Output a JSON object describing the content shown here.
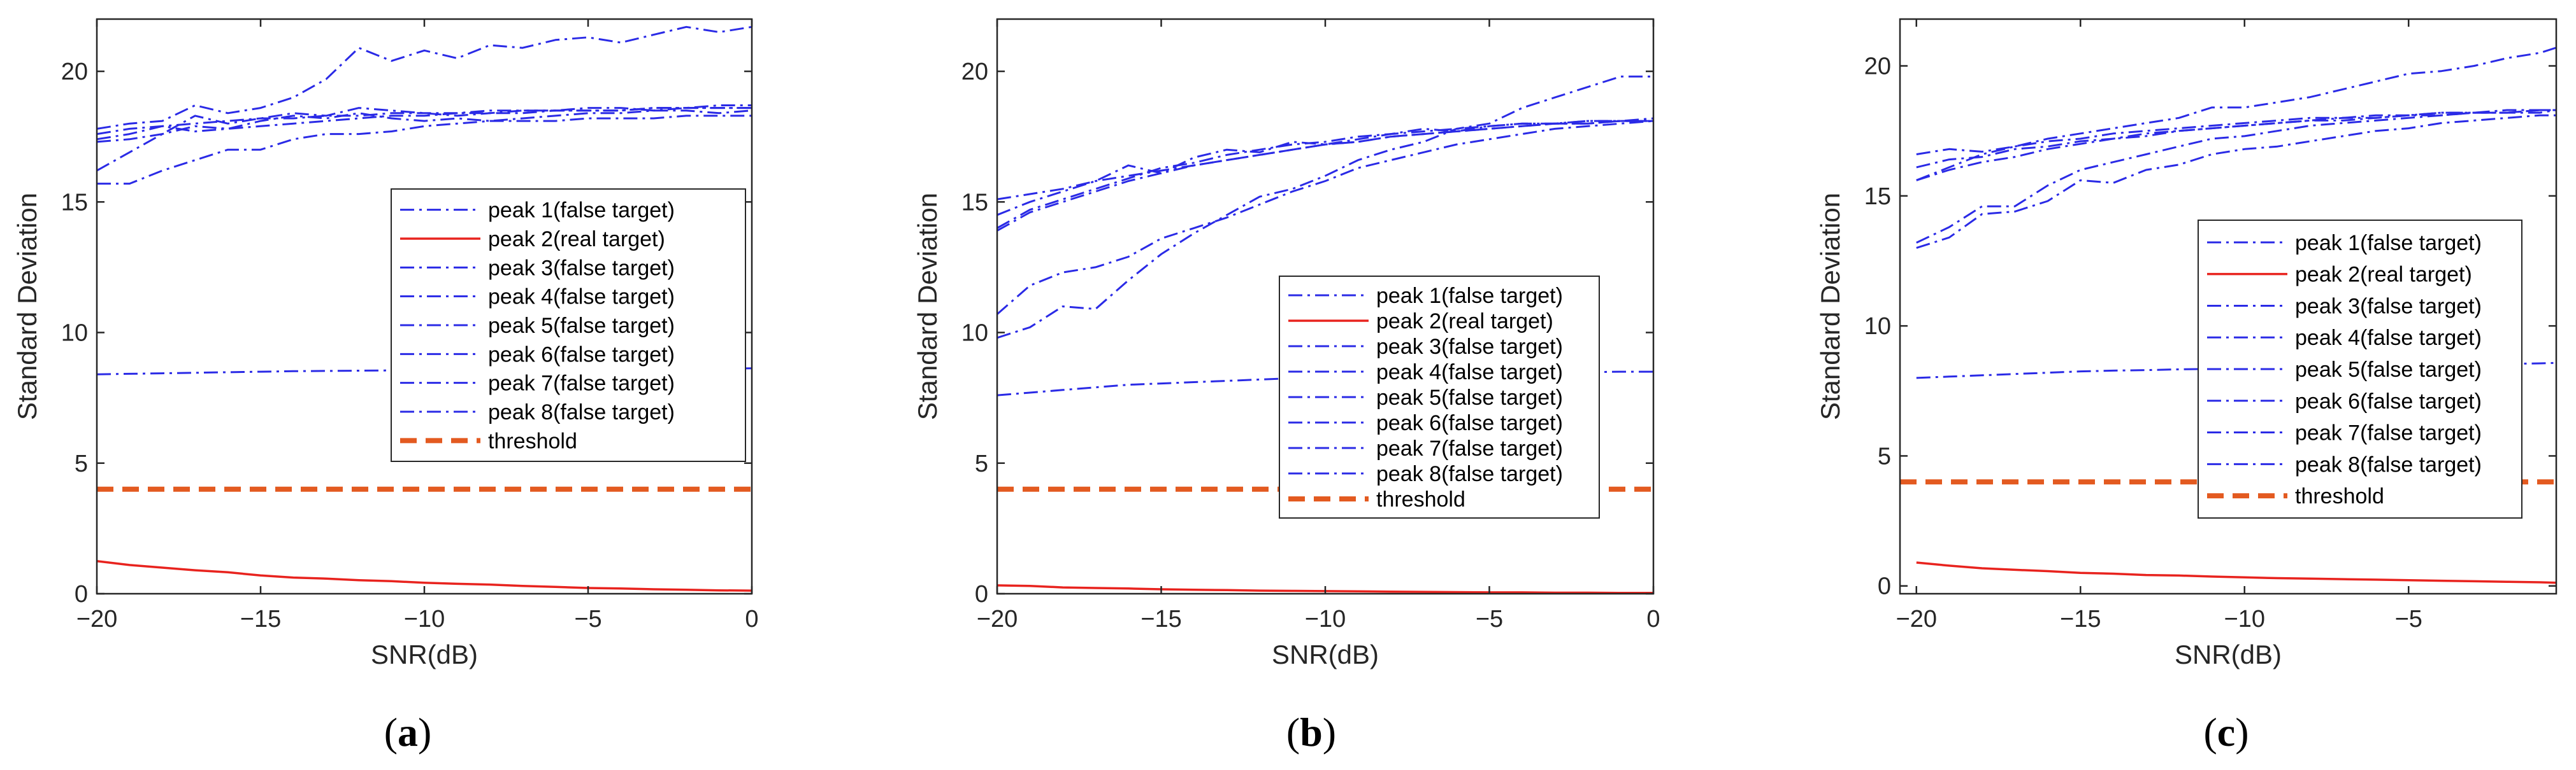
{
  "colors": {
    "false_target": "#2a2ae6",
    "real_target": "#e8231e",
    "threshold": "#e35a20",
    "axis": "#262626"
  },
  "chart_data": [
    {
      "type": "line",
      "panel_label": "a",
      "xlabel": "SNR(dB)",
      "ylabel": "Standard Deviation",
      "xlim": [
        -20,
        0
      ],
      "ylim": [
        0,
        22
      ],
      "xticks": [
        -20,
        -15,
        -10,
        -5,
        0
      ],
      "yticks": [
        0,
        5,
        10,
        15,
        20
      ],
      "x": [
        -20,
        -19,
        -18,
        -17,
        -16,
        -15,
        -14,
        -13,
        -12,
        -11,
        -10,
        -9,
        -8,
        -7,
        -6,
        -5,
        -4,
        -3,
        -2,
        -1,
        0
      ],
      "series": [
        {
          "name": "peak 1(false target)",
          "style": "dashdot",
          "values": [
            17.8,
            18.0,
            18.1,
            18.7,
            18.4,
            18.6,
            19.0,
            19.7,
            20.9,
            20.4,
            20.8,
            20.5,
            21.0,
            20.9,
            21.2,
            21.3,
            21.1,
            21.4,
            21.7,
            21.5,
            21.7
          ]
        },
        {
          "name": "peak 2(real target)",
          "style": "solid",
          "values": [
            1.25,
            1.1,
            1.0,
            0.9,
            0.82,
            0.7,
            0.62,
            0.58,
            0.52,
            0.48,
            0.42,
            0.38,
            0.35,
            0.3,
            0.26,
            0.22,
            0.2,
            0.17,
            0.15,
            0.13,
            0.12
          ]
        },
        {
          "name": "peak 3(false target)",
          "style": "dashdot",
          "values": [
            16.2,
            16.9,
            17.6,
            18.3,
            18.0,
            18.2,
            18.4,
            18.3,
            18.6,
            18.5,
            18.4,
            18.3,
            18.4,
            18.5,
            18.5,
            18.6,
            18.6,
            18.5,
            18.6,
            18.7,
            18.7
          ]
        },
        {
          "name": "peak 4(false target)",
          "style": "dashdot",
          "values": [
            17.3,
            17.4,
            17.6,
            17.9,
            17.8,
            17.9,
            18.0,
            18.1,
            18.2,
            18.3,
            18.3,
            18.4,
            18.4,
            18.4,
            18.5,
            18.5,
            18.5,
            18.6,
            18.6,
            18.6,
            18.6
          ]
        },
        {
          "name": "peak 5(false target)",
          "style": "dashdot",
          "values": [
            15.7,
            15.7,
            16.2,
            16.6,
            17.0,
            17.0,
            17.4,
            17.6,
            17.6,
            17.7,
            17.9,
            18.0,
            18.1,
            18.1,
            18.1,
            18.2,
            18.2,
            18.2,
            18.3,
            18.3,
            18.3
          ]
        },
        {
          "name": "peak 6(false target)",
          "style": "dashdot",
          "values": [
            17.6,
            17.8,
            17.9,
            18.0,
            18.1,
            18.2,
            18.2,
            18.3,
            18.3,
            18.4,
            18.4,
            18.4,
            18.5,
            18.5,
            18.5,
            18.5,
            18.5,
            18.6,
            18.6,
            18.6,
            18.6
          ]
        },
        {
          "name": "peak 7(false target)",
          "style": "dashdot",
          "values": [
            17.4,
            17.6,
            17.9,
            17.7,
            17.8,
            18.1,
            18.3,
            18.2,
            18.4,
            18.2,
            18.1,
            18.2,
            18.1,
            18.2,
            18.3,
            18.4,
            18.4,
            18.5,
            18.5,
            18.4,
            18.5
          ]
        },
        {
          "name": "peak 8(false target)",
          "style": "dashdot",
          "values": [
            8.4,
            8.42,
            8.44,
            8.46,
            8.48,
            8.5,
            8.52,
            8.53,
            8.54,
            8.55,
            8.56,
            8.57,
            8.58,
            8.58,
            8.59,
            8.6,
            8.6,
            8.61,
            8.62,
            8.62,
            8.63
          ]
        },
        {
          "name": "threshold",
          "style": "dashed",
          "values": [
            4,
            4,
            4,
            4,
            4,
            4,
            4,
            4,
            4,
            4,
            4,
            4,
            4,
            4,
            4,
            4,
            4,
            4,
            4,
            4,
            4
          ]
        }
      ],
      "legend_position": "center-right"
    },
    {
      "type": "line",
      "panel_label": "b",
      "xlabel": "SNR(dB)",
      "ylabel": "Standard Deviation",
      "xlim": [
        -20,
        0
      ],
      "ylim": [
        0,
        22
      ],
      "xticks": [
        -20,
        -15,
        -10,
        -5,
        0
      ],
      "yticks": [
        0,
        5,
        10,
        15,
        20
      ],
      "x": [
        -20,
        -19,
        -18,
        -17,
        -16,
        -15,
        -14,
        -13,
        -12,
        -11,
        -10,
        -9,
        -8,
        -7,
        -6,
        -5,
        -4,
        -3,
        -2,
        -1,
        0
      ],
      "series": [
        {
          "name": "peak 1(false target)",
          "style": "dashdot",
          "values": [
            9.8,
            10.2,
            11.0,
            10.9,
            12.0,
            13.0,
            13.8,
            14.5,
            15.2,
            15.5,
            16.0,
            16.6,
            17.0,
            17.3,
            17.8,
            18.0,
            18.6,
            19.0,
            19.4,
            19.8,
            19.8
          ]
        },
        {
          "name": "peak 2(real target)",
          "style": "solid",
          "values": [
            0.32,
            0.3,
            0.24,
            0.22,
            0.2,
            0.17,
            0.15,
            0.14,
            0.12,
            0.11,
            0.1,
            0.09,
            0.08,
            0.07,
            0.06,
            0.05,
            0.05,
            0.04,
            0.04,
            0.03,
            0.03
          ]
        },
        {
          "name": "peak 3(false target)",
          "style": "dashdot",
          "values": [
            10.7,
            11.8,
            12.3,
            12.5,
            12.9,
            13.6,
            14.0,
            14.4,
            14.9,
            15.4,
            15.8,
            16.3,
            16.6,
            16.9,
            17.2,
            17.4,
            17.6,
            17.8,
            17.9,
            18.0,
            18.1
          ]
        },
        {
          "name": "peak 4(false target)",
          "style": "dashdot",
          "values": [
            13.9,
            14.6,
            15.0,
            15.4,
            15.8,
            16.1,
            16.4,
            16.6,
            16.8,
            17.0,
            17.2,
            17.3,
            17.5,
            17.6,
            17.7,
            17.8,
            17.9,
            18.0,
            18.0,
            18.1,
            18.1
          ]
        },
        {
          "name": "peak 5(false target)",
          "style": "dashdot",
          "values": [
            14.0,
            14.7,
            15.1,
            15.5,
            15.9,
            16.3,
            16.5,
            16.8,
            17.0,
            17.2,
            17.3,
            17.5,
            17.6,
            17.7,
            17.8,
            17.9,
            18.0,
            18.0,
            18.1,
            18.1,
            18.2
          ]
        },
        {
          "name": "peak 6(false target)",
          "style": "dashdot",
          "values": [
            14.5,
            15.0,
            15.4,
            15.8,
            16.4,
            16.1,
            16.7,
            17.0,
            16.9,
            17.3,
            17.2,
            17.4,
            17.6,
            17.8,
            17.7,
            17.9,
            18.0,
            18.0,
            18.1,
            18.1,
            18.1
          ]
        },
        {
          "name": "peak 7(false target)",
          "style": "dashdot",
          "values": [
            15.1,
            15.3,
            15.5,
            15.8,
            16.0,
            16.2,
            16.4,
            16.6,
            16.8,
            17.0,
            17.2,
            17.3,
            17.5,
            17.6,
            17.7,
            17.8,
            17.9,
            18.0,
            18.0,
            18.1,
            18.1
          ]
        },
        {
          "name": "peak 8(false target)",
          "style": "dashdot",
          "values": [
            7.6,
            7.7,
            7.8,
            7.9,
            8.0,
            8.05,
            8.1,
            8.15,
            8.2,
            8.25,
            8.3,
            8.33,
            8.36,
            8.38,
            8.4,
            8.42,
            8.44,
            8.46,
            8.48,
            8.5,
            8.5
          ]
        },
        {
          "name": "threshold",
          "style": "dashed",
          "values": [
            4,
            4,
            4,
            4,
            4,
            4,
            4,
            4,
            4,
            4,
            4,
            4,
            4,
            4,
            4,
            4,
            4,
            4,
            4,
            4,
            4
          ]
        }
      ],
      "legend_position": "lower-right"
    },
    {
      "type": "line",
      "panel_label": "c",
      "xlabel": "SNR(dB)",
      "ylabel": "Standard Deviation",
      "xlim": [
        -20.5,
        -0.5
      ],
      "ylim": [
        -0.3,
        21.8
      ],
      "xticks": [
        -20,
        -15,
        -10,
        -5
      ],
      "yticks": [
        0,
        5,
        10,
        15,
        20
      ],
      "x": [
        -20,
        -19,
        -18,
        -17,
        -16,
        -15,
        -14,
        -13,
        -12,
        -11,
        -10,
        -9,
        -8,
        -7,
        -6,
        -5,
        -4,
        -3,
        -2,
        -1,
        -0.5
      ],
      "series": [
        {
          "name": "peak 1(false target)",
          "style": "dashdot",
          "values": [
            15.6,
            16.1,
            16.6,
            16.9,
            17.2,
            17.4,
            17.6,
            17.8,
            18.0,
            18.4,
            18.4,
            18.6,
            18.8,
            19.1,
            19.4,
            19.7,
            19.8,
            20.0,
            20.3,
            20.5,
            20.7
          ]
        },
        {
          "name": "peak 2(real target)",
          "style": "solid",
          "values": [
            0.9,
            0.78,
            0.68,
            0.62,
            0.57,
            0.5,
            0.47,
            0.42,
            0.4,
            0.36,
            0.33,
            0.3,
            0.28,
            0.26,
            0.24,
            0.22,
            0.2,
            0.18,
            0.16,
            0.14,
            0.12
          ]
        },
        {
          "name": "peak 3(false target)",
          "style": "dashdot",
          "values": [
            13.0,
            13.4,
            14.3,
            14.4,
            14.8,
            15.6,
            15.5,
            16.0,
            16.2,
            16.6,
            16.8,
            16.9,
            17.1,
            17.3,
            17.5,
            17.6,
            17.8,
            17.9,
            18.0,
            18.1,
            18.1
          ]
        },
        {
          "name": "peak 4(false target)",
          "style": "dashdot",
          "values": [
            13.2,
            13.8,
            14.6,
            14.6,
            15.4,
            16.0,
            16.3,
            16.6,
            16.9,
            17.2,
            17.3,
            17.5,
            17.7,
            17.8,
            17.9,
            18.0,
            18.1,
            18.2,
            18.2,
            18.3,
            18.3
          ]
        },
        {
          "name": "peak 5(false target)",
          "style": "dashdot",
          "values": [
            15.6,
            16.0,
            16.3,
            16.5,
            16.8,
            17.0,
            17.2,
            17.3,
            17.5,
            17.6,
            17.7,
            17.8,
            17.9,
            18.0,
            18.0,
            18.1,
            18.2,
            18.2,
            18.2,
            18.3,
            18.3
          ]
        },
        {
          "name": "peak 6(false target)",
          "style": "dashdot",
          "values": [
            16.1,
            16.4,
            16.5,
            16.8,
            16.9,
            17.1,
            17.2,
            17.4,
            17.5,
            17.6,
            17.7,
            17.8,
            17.9,
            17.9,
            18.0,
            18.1,
            18.1,
            18.2,
            18.2,
            18.2,
            18.3
          ]
        },
        {
          "name": "peak 7(false target)",
          "style": "dashdot",
          "values": [
            16.6,
            16.8,
            16.7,
            16.9,
            17.1,
            17.2,
            17.4,
            17.5,
            17.6,
            17.7,
            17.8,
            17.9,
            18.0,
            18.0,
            18.1,
            18.1,
            18.2,
            18.2,
            18.3,
            18.3,
            18.3
          ]
        },
        {
          "name": "peak 8(false target)",
          "style": "dashdot",
          "values": [
            8.0,
            8.05,
            8.1,
            8.15,
            8.2,
            8.25,
            8.28,
            8.3,
            8.33,
            8.35,
            8.38,
            8.4,
            8.42,
            8.44,
            8.46,
            8.48,
            8.5,
            8.52,
            8.54,
            8.56,
            8.58
          ]
        },
        {
          "name": "threshold",
          "style": "dashed",
          "values": [
            4,
            4,
            4,
            4,
            4,
            4,
            4,
            4,
            4,
            4,
            4,
            4,
            4,
            4,
            4,
            4,
            4,
            4,
            4,
            4,
            4
          ]
        }
      ],
      "legend_position": "center-right"
    }
  ]
}
